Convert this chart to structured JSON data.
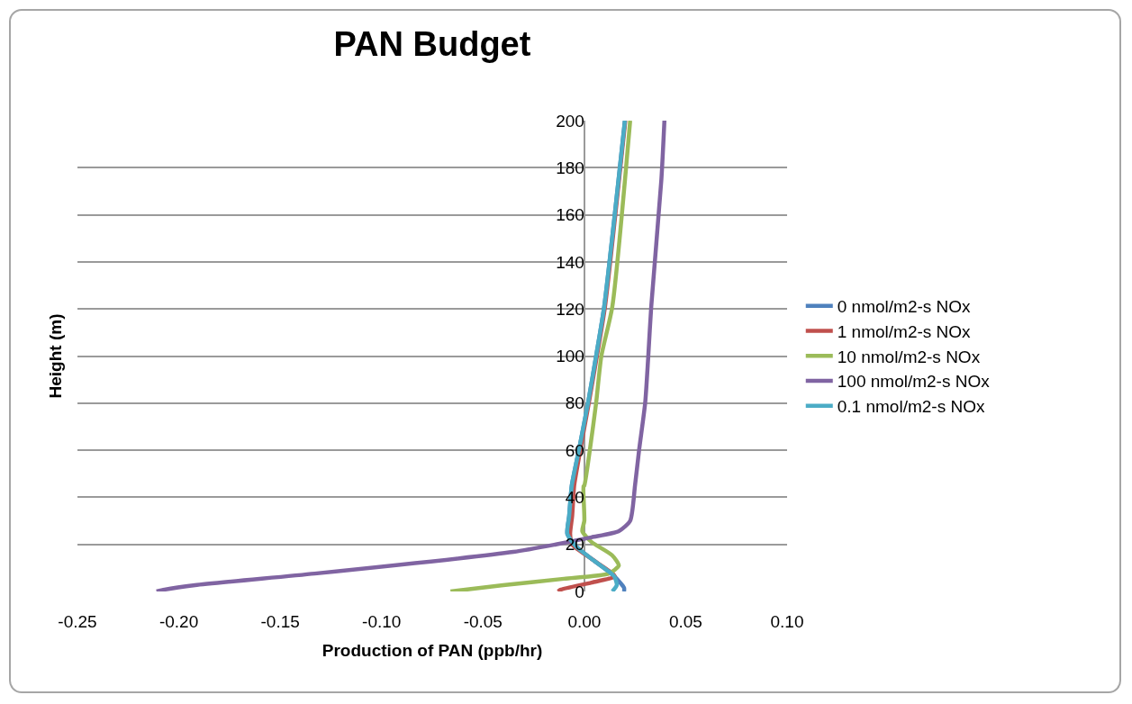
{
  "chart_data": {
    "type": "line",
    "title": "PAN Budget",
    "xlabel": "Production of PAN (ppb/hr)",
    "ylabel": "Height (m)",
    "xlim": [
      -0.25,
      0.1
    ],
    "xticks": [
      {
        "value": -0.25,
        "label": "-0.25"
      },
      {
        "value": -0.2,
        "label": "-0.20"
      },
      {
        "value": -0.15,
        "label": "-0.15"
      },
      {
        "value": -0.1,
        "label": "-0.10"
      },
      {
        "value": -0.05,
        "label": "-0.05"
      },
      {
        "value": 0,
        "label": "0.00"
      },
      {
        "value": 0.05,
        "label": "0.05"
      },
      {
        "value": 0.1,
        "label": "0.10"
      }
    ],
    "ylim": [
      0,
      200
    ],
    "yticks": [
      0,
      20,
      40,
      60,
      80,
      100,
      120,
      140,
      160,
      180,
      200
    ],
    "grid": "y",
    "legend": "right",
    "marker": "none",
    "line_style": "solid",
    "series": [
      {
        "name": "0 nmol/m2-s NOx",
        "color": "#4f81bd",
        "x": [
          0.0196,
          0.0196,
          0.0147,
          0.0049,
          -0.004,
          -0.0084,
          -0.0075,
          -0.0062,
          -0.0027,
          0.0018,
          0.0058,
          0.0098,
          0.02
        ],
        "values": [
          0,
          1.5,
          6.5,
          13,
          19,
          24.5,
          32,
          45,
          60,
          80,
          100,
          121,
          200
        ]
      },
      {
        "name": "1 nmol/m2-s NOx",
        "color": "#c0504d",
        "x": [
          -0.013,
          -0.0115,
          0.0036,
          0.015,
          0.005,
          -0.006,
          -0.007,
          -0.006,
          -0.005,
          -0.002,
          0.0022,
          0.0062,
          0.0102,
          0.0202
        ],
        "values": [
          0,
          0.8,
          3.8,
          6.5,
          13,
          20,
          24.5,
          32,
          45,
          60,
          80,
          100,
          121,
          200
        ]
      },
      {
        "name": "10 nmol/m2-s NOx",
        "color": "#9bbb59",
        "x": [
          -0.066,
          -0.04,
          -0.01,
          0.012,
          0.017,
          0.0138,
          0.0036,
          -0.001,
          0,
          -0.0004,
          0,
          0.0027,
          0.0058,
          0.0084,
          0.0138,
          0.0226
        ],
        "values": [
          0,
          2.7,
          5.4,
          7.6,
          11,
          15.3,
          21,
          25.6,
          30,
          44.7,
          45,
          60,
          80,
          100,
          121,
          200
        ]
      },
      {
        "name": "100 nmol/m2-s NOx",
        "color": "#8064a2",
        "x": [
          -0.211,
          -0.207,
          -0.192,
          -0.133,
          -0.035,
          -0.014,
          0.0035,
          0.017,
          0.0226,
          0.025,
          0.027,
          0.03,
          0.0315,
          0.033,
          0.038,
          0.0395
        ],
        "values": [
          0,
          0.8,
          2.7,
          7.6,
          16.8,
          20,
          23,
          25.6,
          30,
          45,
          60,
          80,
          99.4,
          121,
          175,
          200
        ]
      },
      {
        "name": "0.1 nmol/m2-s NOx",
        "color": "#4bacc6",
        "x": [
          0.0138,
          0.016,
          0.0147,
          0.0049,
          -0.004,
          -0.0084,
          -0.0075,
          -0.0062,
          -0.0027,
          0.0018,
          0.0058,
          0.0098,
          0.02
        ],
        "values": [
          0,
          2.7,
          6.5,
          13,
          19,
          24.5,
          32,
          45,
          60,
          80,
          100,
          121,
          200
        ]
      }
    ]
  }
}
